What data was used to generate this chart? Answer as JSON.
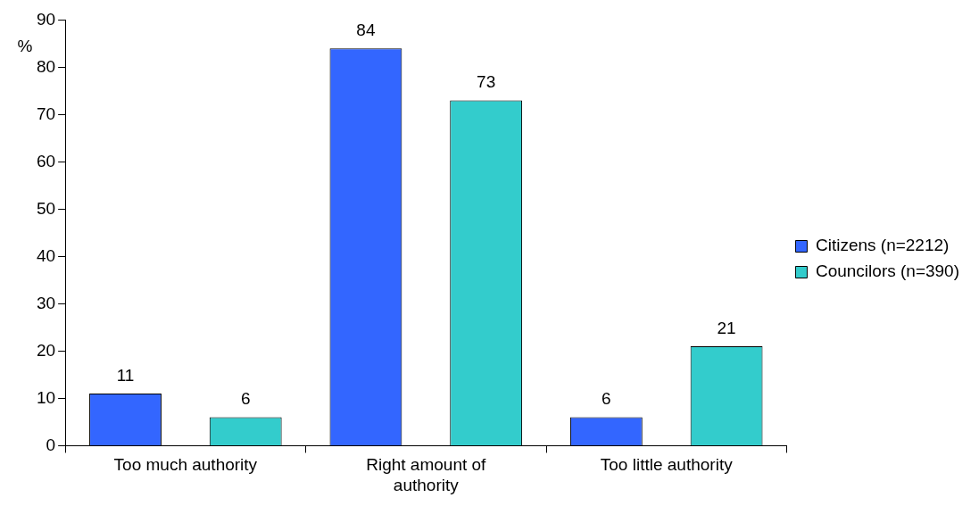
{
  "chart_data": {
    "type": "bar",
    "ylabel": "%",
    "categories": [
      "Too much authority",
      "Right amount of authority",
      "Too little authority"
    ],
    "series": [
      {
        "name": "Citizens (n=2212)",
        "color": "#3366ff",
        "values": [
          11,
          84,
          6
        ]
      },
      {
        "name": "Councilors (n=390)",
        "color": "#33cccc",
        "values": [
          6,
          73,
          21
        ]
      }
    ],
    "ylim": [
      0,
      90
    ],
    "yticks": [
      0,
      10,
      20,
      30,
      40,
      50,
      60,
      70,
      80,
      90
    ],
    "grid": false,
    "legend": "right",
    "data_labels": true
  }
}
